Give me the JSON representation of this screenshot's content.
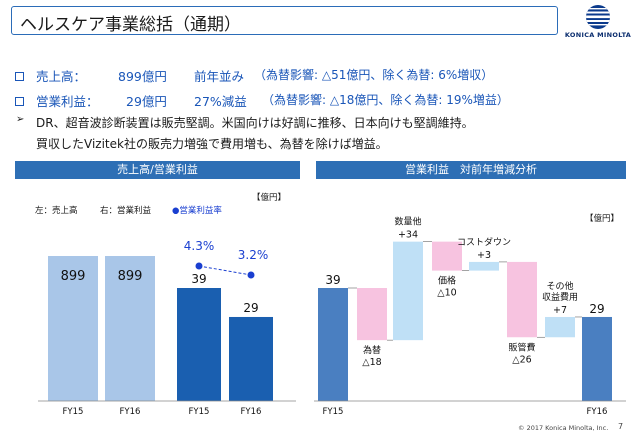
{
  "title": "ヘルスケア事業総括（通期）",
  "logo": {
    "brand": "KONICA MINOLTA"
  },
  "summary": {
    "sales": {
      "label": "売上高：",
      "value": "899億円",
      "change": "前年並み",
      "note": "（為替影響: △51億円、除く為替: 6%増収）"
    },
    "op_income": {
      "label": "営業利益：",
      "value": "29億円",
      "change": "27%減益",
      "note": "（為替影響: △18億円、除く為替: 19%増益）"
    },
    "comment_1": "DR、超音波診断装置は販売堅調。米国向けは好調に推移、日本向けも堅調維持。",
    "comment_2": "買収したVizitek社の販売力増強で費用増も、為替を除けば増益。"
  },
  "left_panel": {
    "header": "売上高/営業利益",
    "unit": "【億円】",
    "legend": {
      "left": "左：売上高",
      "right": "右：営業利益",
      "rate": "●営業利益率"
    }
  },
  "right_panel": {
    "header": "営業利益　対前年増減分析",
    "unit": "【億円】"
  },
  "chart_data": [
    {
      "type": "bar",
      "title": "売上高",
      "categories": [
        "FY15",
        "FY16"
      ],
      "values": [
        899,
        899
      ],
      "color": "#a9c6e8"
    },
    {
      "type": "bar",
      "title": "営業利益",
      "categories": [
        "FY15",
        "FY16"
      ],
      "values": [
        39,
        29
      ],
      "color": "#1a5fb0",
      "rate": {
        "name": "営業利益率",
        "values": [
          4.3,
          3.2
        ],
        "labels": [
          "4.3%",
          "3.2%"
        ],
        "color": "#1a3fd0"
      }
    },
    {
      "type": "bar",
      "subtype": "waterfall",
      "steps": [
        {
          "label": "",
          "value": 39,
          "kind": "total",
          "category": "FY15"
        },
        {
          "label": "為替",
          "value": -18,
          "kind": "decrease",
          "display": "△18"
        },
        {
          "label": "数量他",
          "value": 34,
          "kind": "increase",
          "display": "+34"
        },
        {
          "label": "価格",
          "value": -10,
          "kind": "decrease",
          "display": "△10"
        },
        {
          "label": "コストダウン",
          "value": 3,
          "kind": "increase",
          "display": "+3"
        },
        {
          "label": "販管費",
          "value": -26,
          "kind": "decrease",
          "display": "△26"
        },
        {
          "label": "その他\n収益費用",
          "value": 7,
          "kind": "increase",
          "display": "+7"
        },
        {
          "label": "",
          "value": 29,
          "kind": "total",
          "category": "FY16"
        }
      ],
      "colors": {
        "total": "#4a7fc1",
        "increase": "#bfe0f6",
        "decrease": "#f7c3e0"
      }
    }
  ],
  "footer": {
    "copyright": "© 2017 Konica Minolta, Inc.",
    "page": "7"
  }
}
